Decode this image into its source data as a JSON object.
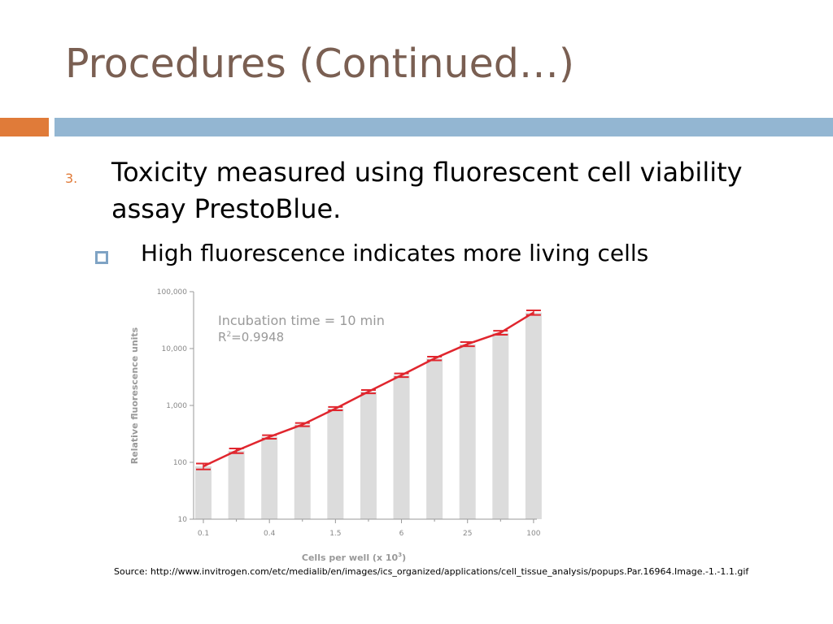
{
  "slide": {
    "title": "Procedures (Continued…)",
    "bullet_number": "3.",
    "bullet_text": "Toxicity measured using fluorescent cell viability assay PrestoBlue.",
    "sub_bullet_text": "High fluorescence indicates more living cells",
    "source": "Source: http://www.invitrogen.com/etc/medialib/en/images/ics_organized/applications/cell_tissue_analysis/popups.Par.16964.Image.-1.-1.1.gif"
  },
  "colors": {
    "title": "#7a5f52",
    "accent_orange": "#e07b39",
    "accent_blue": "#93b6d2",
    "bullet_number": "#e07b39",
    "sub_marker": "#7fa3c4",
    "bar_fill": "#dcdcdc",
    "line": "#e0262e",
    "axis": "#999999",
    "tick_text": "#888888",
    "annotation_text": "#999999"
  },
  "chart_data": {
    "type": "bar",
    "overlay": "line with error bars",
    "x": [
      0.1,
      0.2,
      0.4,
      0.8,
      1.5,
      3,
      6,
      12,
      25,
      50,
      100
    ],
    "x_tick_labels": [
      "0.1",
      "0.4",
      "1.5",
      "6",
      "25",
      "100"
    ],
    "x_tick_values": [
      0.1,
      0.4,
      1.5,
      6,
      25,
      100
    ],
    "values": [
      85,
      160,
      280,
      460,
      880,
      1750,
      3400,
      6700,
      12000,
      19000,
      43000
    ],
    "error": [
      10,
      15,
      20,
      30,
      60,
      120,
      250,
      500,
      1000,
      1500,
      4000
    ],
    "ylabel": "Relative fluorescence units",
    "xlabel": "Cells per well (x 10",
    "xlabel_exponent": "3",
    "xlabel_suffix": ")",
    "y_scale": "log",
    "ylim": [
      10,
      100000
    ],
    "y_ticks": [
      10,
      100,
      1000,
      10000,
      100000
    ],
    "y_tick_labels": [
      "10",
      "100",
      "1,000",
      "10,000",
      "100,000"
    ],
    "annotation_line1": "Incubation time = 10 min",
    "annotation_r_prefix": "R",
    "annotation_r_exponent": "2",
    "annotation_r_value": "=0.9948",
    "grid": false
  }
}
